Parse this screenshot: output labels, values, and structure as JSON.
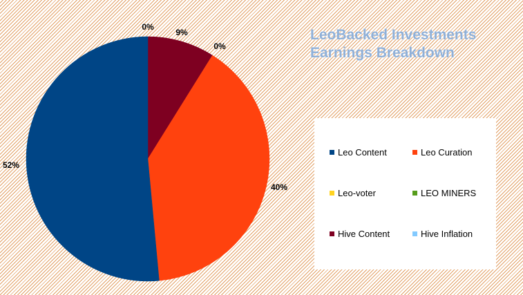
{
  "chart_data": {
    "type": "pie",
    "title": "LeoBacked Investments Earnings Breakdown",
    "legend_position": "right",
    "slices": [
      {
        "name": "Leo Content",
        "value": 52,
        "label": "52%",
        "color": "#004586"
      },
      {
        "name": "Leo Curation",
        "value": 40,
        "label": "40%",
        "color": "#ff420e"
      },
      {
        "name": "Leo-voter",
        "value": 0,
        "label": "0%",
        "color": "#ffd320"
      },
      {
        "name": "LEO MINERS",
        "value": 0,
        "label": "0%",
        "color": "#579d1c"
      },
      {
        "name": "Hive Content",
        "value": 9,
        "label": "9%",
        "color": "#7e0021"
      },
      {
        "name": "Hive Inflation",
        "value": 0,
        "label": "0%",
        "color": "#83caff"
      }
    ]
  }
}
